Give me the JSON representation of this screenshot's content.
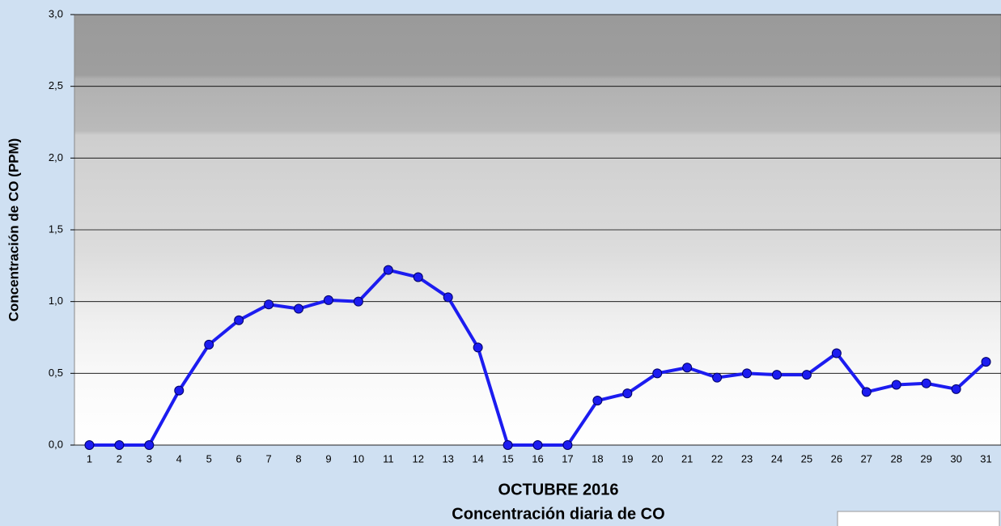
{
  "chart_data": {
    "type": "line",
    "title": "OCTUBRE 2016",
    "subtitle": "Concentración diaria de CO",
    "y_label": "Concentración de CO (PPM)",
    "categories": [
      "1",
      "2",
      "3",
      "4",
      "5",
      "6",
      "7",
      "8",
      "9",
      "10",
      "11",
      "12",
      "13",
      "14",
      "15",
      "16",
      "17",
      "18",
      "19",
      "20",
      "21",
      "22",
      "23",
      "24",
      "25",
      "26",
      "27",
      "28",
      "29",
      "30",
      "31"
    ],
    "values": [
      0,
      0,
      0,
      0.38,
      0.7,
      0.87,
      0.98,
      0.95,
      1.01,
      1.0,
      1.22,
      1.17,
      1.03,
      0.68,
      0,
      0,
      0,
      0.31,
      0.36,
      0.5,
      0.54,
      0.47,
      0.5,
      0.49,
      0.49,
      0.64,
      0.37,
      0.42,
      0.43,
      0.39,
      0.58
    ],
    "color": "#1c1cf0",
    "ylim": [
      0,
      3
    ],
    "yticks": [
      {
        "value": 0,
        "label": "0,0"
      },
      {
        "value": 0.5,
        "label": "0,5"
      },
      {
        "value": 1,
        "label": "1,0"
      },
      {
        "value": 1.5,
        "label": "1,5"
      },
      {
        "value": 2,
        "label": "2,0"
      },
      {
        "value": 2.5,
        "label": "2,5"
      },
      {
        "value": 3,
        "label": "3,0"
      }
    ],
    "grid": true
  }
}
